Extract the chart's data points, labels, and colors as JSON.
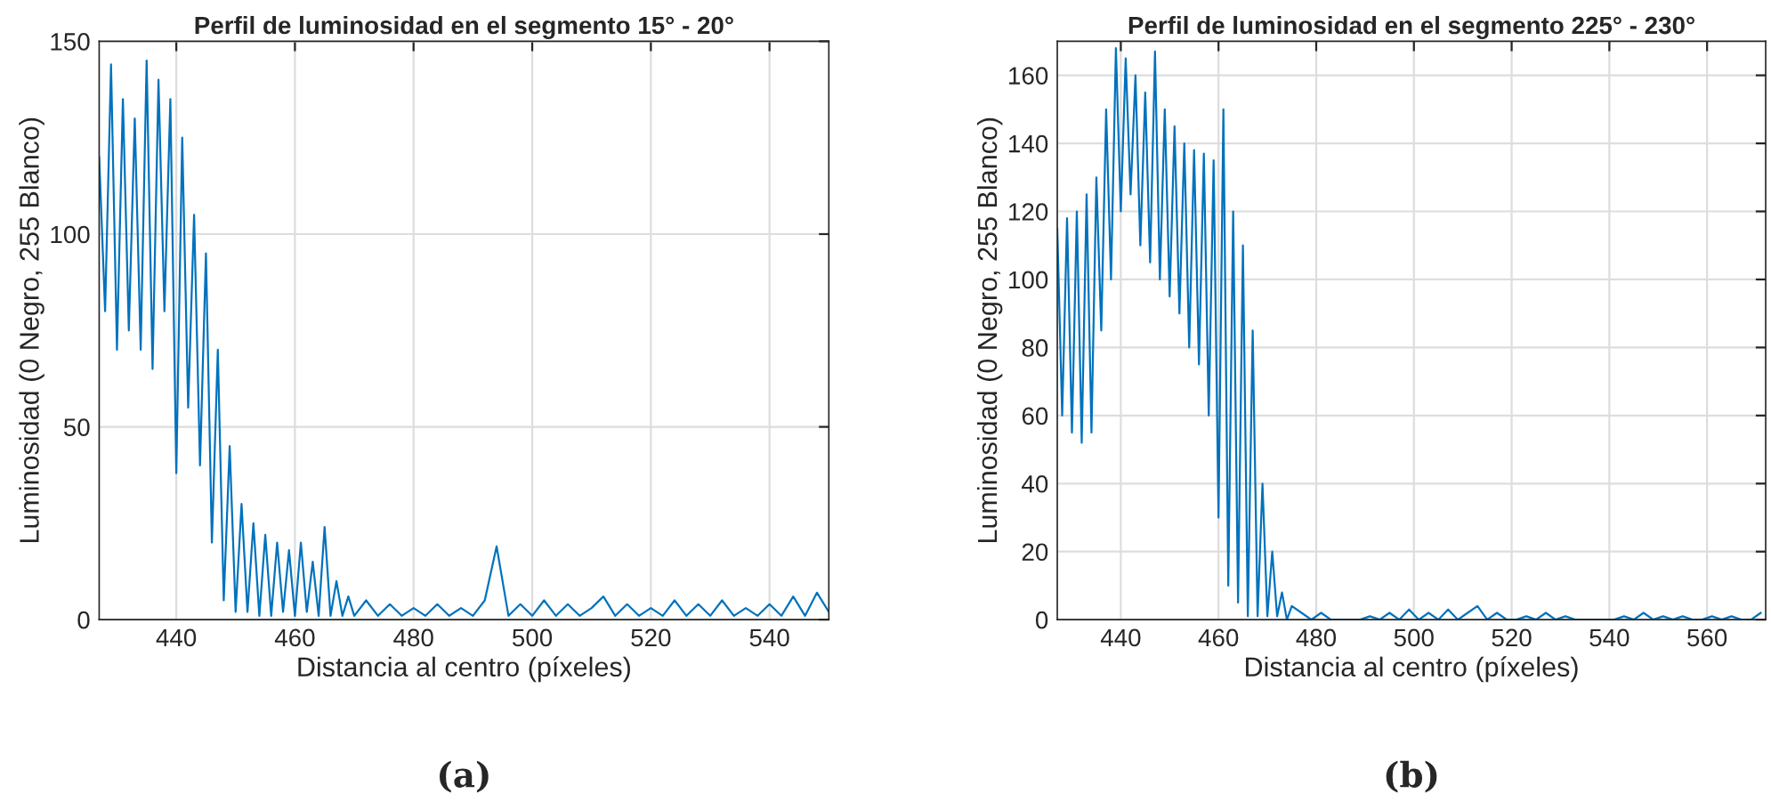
{
  "chart_data": [
    {
      "type": "line",
      "title": "Perfil de luminosidad en el segmento 15° - 20°",
      "xlabel": "Distancia al centro (píxeles)",
      "ylabel": "Luminosidad (0 Negro, 255 Blanco)",
      "annotations": [
        "(a)"
      ],
      "series": [
        {
          "color": "#0072bd",
          "x": [
            427,
            428,
            429,
            430,
            431,
            432,
            433,
            434,
            435,
            436,
            437,
            438,
            439,
            440,
            441,
            442,
            443,
            444,
            445,
            446,
            447,
            448,
            449,
            450,
            451,
            452,
            453,
            454,
            455,
            456,
            457,
            458,
            459,
            460,
            461,
            462,
            463,
            464,
            465,
            466,
            467,
            468,
            469,
            470,
            472,
            474,
            476,
            478,
            480,
            482,
            484,
            486,
            488,
            490,
            492,
            494,
            496,
            498,
            500,
            502,
            504,
            506,
            508,
            510,
            512,
            514,
            516,
            518,
            520,
            522,
            524,
            526,
            528,
            530,
            532,
            534,
            536,
            538,
            540,
            542,
            544,
            546,
            548,
            550
          ],
          "values": [
            120,
            80,
            144,
            70,
            135,
            75,
            130,
            70,
            145,
            65,
            140,
            80,
            135,
            38,
            125,
            55,
            105,
            40,
            95,
            20,
            70,
            5,
            45,
            2,
            30,
            2,
            25,
            1,
            22,
            1,
            20,
            2,
            18,
            1,
            20,
            2,
            15,
            1,
            24,
            1,
            10,
            1,
            6,
            1,
            5,
            1,
            4,
            1,
            3,
            1,
            4,
            1,
            3,
            1,
            5,
            19,
            1,
            4,
            1,
            5,
            1,
            4,
            1,
            3,
            6,
            1,
            4,
            1,
            3,
            1,
            5,
            1,
            4,
            1,
            5,
            1,
            3,
            1,
            4,
            1,
            6,
            1,
            7,
            2
          ]
        }
      ],
      "xlim": [
        427,
        550
      ],
      "ylim": [
        0,
        150
      ],
      "xticks": [
        440,
        460,
        480,
        500,
        520,
        540
      ],
      "yticks": [
        0,
        50,
        100,
        150
      ],
      "grid": true,
      "line_style": "solid"
    },
    {
      "type": "line",
      "title": "Perfil de luminosidad en el segmento 225° - 230°",
      "xlabel": "Distancia al centro (píxeles)",
      "ylabel": "Luminosidad (0 Negro, 255 Blanco)",
      "annotations": [
        "(b)"
      ],
      "series": [
        {
          "color": "#0072bd",
          "x": [
            427,
            428,
            429,
            430,
            431,
            432,
            433,
            434,
            435,
            436,
            437,
            438,
            439,
            440,
            441,
            442,
            443,
            444,
            445,
            446,
            447,
            448,
            449,
            450,
            451,
            452,
            453,
            454,
            455,
            456,
            457,
            458,
            459,
            460,
            461,
            462,
            463,
            464,
            465,
            466,
            467,
            468,
            469,
            470,
            471,
            472,
            473,
            474,
            475,
            477,
            479,
            481,
            483,
            485,
            487,
            489,
            491,
            493,
            495,
            497,
            499,
            501,
            503,
            505,
            507,
            509,
            511,
            513,
            515,
            517,
            519,
            521,
            523,
            525,
            527,
            529,
            531,
            533,
            535,
            537,
            539,
            541,
            543,
            545,
            547,
            549,
            551,
            553,
            555,
            557,
            559,
            561,
            563,
            565,
            567,
            569,
            571
          ],
          "values": [
            115,
            60,
            118,
            55,
            120,
            52,
            125,
            55,
            130,
            85,
            150,
            100,
            168,
            120,
            165,
            125,
            160,
            110,
            155,
            105,
            167,
            100,
            150,
            95,
            145,
            90,
            140,
            80,
            138,
            75,
            137,
            60,
            135,
            30,
            150,
            10,
            120,
            5,
            110,
            1,
            85,
            1,
            40,
            1,
            20,
            1,
            8,
            0,
            4,
            2,
            0,
            2,
            0,
            0,
            0,
            0,
            1,
            0,
            2,
            0,
            3,
            0,
            2,
            0,
            3,
            0,
            2,
            4,
            0,
            2,
            0,
            0,
            1,
            0,
            2,
            0,
            1,
            0,
            0,
            0,
            0,
            0,
            1,
            0,
            2,
            0,
            1,
            0,
            1,
            0,
            0,
            1,
            0,
            1,
            0,
            0,
            2
          ]
        }
      ],
      "xlim": [
        427,
        572
      ],
      "ylim": [
        0,
        170
      ],
      "xticks": [
        440,
        460,
        480,
        500,
        520,
        540,
        560
      ],
      "yticks": [
        0,
        20,
        40,
        60,
        80,
        100,
        120,
        140,
        160
      ],
      "grid": true,
      "line_style": "solid"
    }
  ]
}
